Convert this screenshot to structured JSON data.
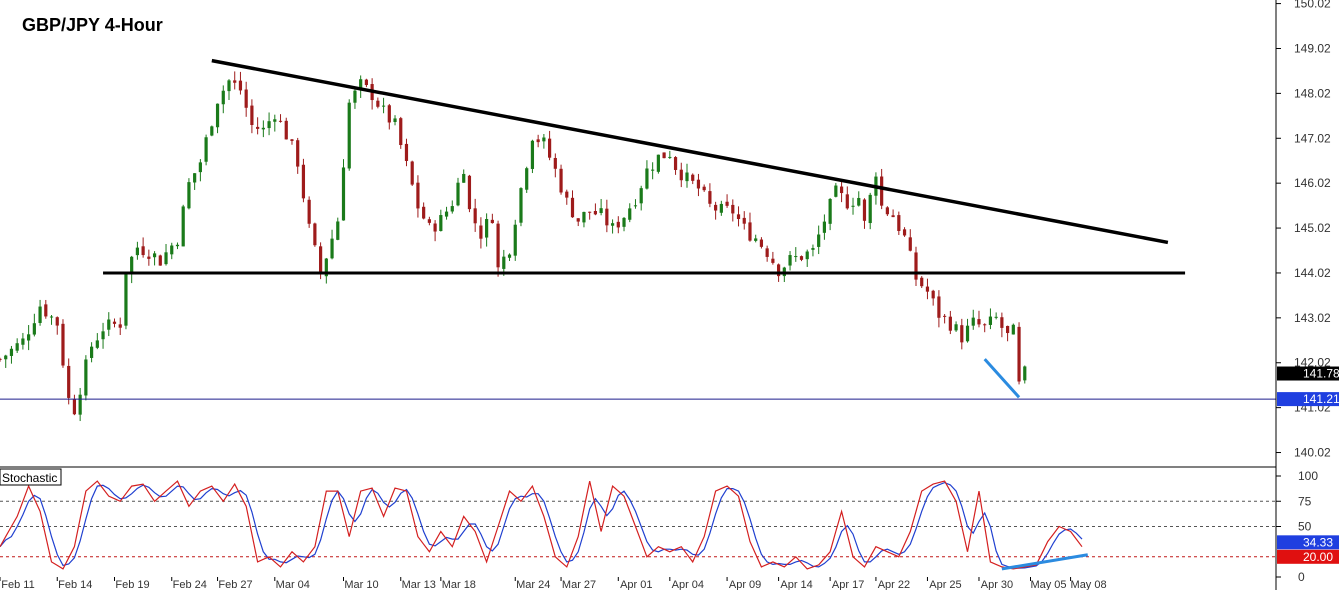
{
  "chart_data": [
    {
      "type": "candlestick",
      "title": "GBP/JPY 4-Hour",
      "ylim": [
        139.72,
        150.1
      ],
      "yticks": [
        "150.02",
        "149.02",
        "148.02",
        "147.02",
        "146.02",
        "145.02",
        "144.02",
        "143.02",
        "142.02",
        "141.02",
        "140.02"
      ],
      "ytick_values": [
        150.02,
        149.02,
        148.02,
        147.02,
        146.02,
        145.02,
        144.02,
        143.02,
        142.02,
        141.02,
        140.02
      ],
      "price_path": [
        [
          0,
          142.1
        ],
        [
          4,
          142.5
        ],
        [
          7,
          143.3
        ],
        [
          10,
          142.9
        ],
        [
          12,
          141.2
        ],
        [
          13,
          141.0
        ],
        [
          16,
          142.4
        ],
        [
          18,
          142.8
        ],
        [
          21,
          142.9
        ],
        [
          22,
          144.1
        ],
        [
          24,
          144.6
        ],
        [
          26,
          144.5
        ],
        [
          28,
          144.3
        ],
        [
          31,
          144.8
        ],
        [
          33,
          146.0
        ],
        [
          35,
          146.5
        ],
        [
          38,
          147.9
        ],
        [
          40,
          148.3
        ],
        [
          42,
          148.1
        ],
        [
          44,
          147.3
        ],
        [
          46,
          147.2
        ],
        [
          48,
          147.6
        ],
        [
          50,
          147.1
        ],
        [
          52,
          146.5
        ],
        [
          54,
          145.0
        ],
        [
          56,
          144.0
        ],
        [
          59,
          145.2
        ],
        [
          61,
          147.8
        ],
        [
          63,
          148.2
        ],
        [
          65,
          148.0
        ],
        [
          67,
          147.6
        ],
        [
          69,
          147.3
        ],
        [
          71,
          146.4
        ],
        [
          73,
          145.5
        ],
        [
          75,
          145.0
        ],
        [
          77,
          145.2
        ],
        [
          79,
          145.6
        ],
        [
          81,
          146.4
        ],
        [
          82,
          145.4
        ],
        [
          84,
          144.9
        ],
        [
          86,
          145.3
        ],
        [
          87,
          144.1
        ],
        [
          89,
          144.6
        ],
        [
          91,
          145.9
        ],
        [
          93,
          147.1
        ],
        [
          95,
          146.9
        ],
        [
          97,
          146.3
        ],
        [
          99,
          145.6
        ],
        [
          101,
          145.2
        ],
        [
          103,
          145.4
        ],
        [
          105,
          145.3
        ],
        [
          107,
          145.0
        ],
        [
          109,
          145.3
        ],
        [
          111,
          145.7
        ],
        [
          113,
          146.3
        ],
        [
          115,
          146.6
        ],
        [
          117,
          146.7
        ],
        [
          118,
          146.4
        ],
        [
          120,
          146.1
        ],
        [
          122,
          145.9
        ],
        [
          124,
          145.5
        ],
        [
          126,
          145.4
        ],
        [
          128,
          145.4
        ],
        [
          130,
          145.0
        ],
        [
          132,
          144.8
        ],
        [
          134,
          144.5
        ],
        [
          136,
          144.1
        ],
        [
          138,
          144.3
        ],
        [
          140,
          144.4
        ],
        [
          142,
          144.5
        ],
        [
          144,
          145.2
        ],
        [
          146,
          145.8
        ],
        [
          148,
          145.6
        ],
        [
          150,
          145.7
        ],
        [
          151,
          145.1
        ],
        [
          153,
          146.3
        ],
        [
          154,
          145.5
        ],
        [
          156,
          145.3
        ],
        [
          158,
          144.8
        ],
        [
          160,
          143.9
        ],
        [
          162,
          143.6
        ],
        [
          164,
          143.1
        ],
        [
          166,
          142.9
        ],
        [
          168,
          142.6
        ],
        [
          170,
          142.9
        ],
        [
          172,
          142.8
        ],
        [
          174,
          143.0
        ],
        [
          176,
          142.6
        ],
        [
          177,
          142.7
        ],
        [
          178,
          141.5
        ],
        [
          179,
          141.78
        ]
      ],
      "horizontal_line": {
        "price": 144.02
      },
      "trendline": {
        "from": [
          37,
          148.75
        ],
        "to": [
          204,
          144.7
        ]
      },
      "price_line": {
        "value": 141.21,
        "label": "141.21"
      },
      "last_price": {
        "value": 141.78,
        "label": "141.78"
      },
      "divergence_line_price": {
        "from": [
          172,
          142.1
        ],
        "to": [
          178,
          141.25
        ]
      },
      "x_tick_labels": [
        "Feb 11",
        "Feb 14",
        "Feb 19",
        "Feb 24",
        "Feb 27",
        "Mar 04",
        "Mar 10",
        "Mar 13",
        "Mar 18",
        "Mar 24",
        "Mar 27",
        "Apr 01",
        "Apr 04",
        "Apr 09",
        "Apr 14",
        "Apr 17",
        "Apr 22",
        "Apr 25",
        "Apr 30",
        "May 05",
        "May 08"
      ],
      "x_tick_positions": [
        0,
        10,
        20,
        30,
        38,
        48,
        60,
        70,
        77,
        90,
        98,
        108,
        117,
        127,
        136,
        145,
        153,
        162,
        171,
        180,
        187
      ]
    },
    {
      "type": "line",
      "title": "Stochastic",
      "ylim": [
        0,
        100
      ],
      "yticks": [
        "100",
        "75",
        "50",
        "0"
      ],
      "ytick_values": [
        100,
        75,
        50,
        0
      ],
      "levels": [
        75,
        50,
        20
      ],
      "k_path": [
        [
          0,
          30
        ],
        [
          3,
          60
        ],
        [
          5,
          90
        ],
        [
          7,
          65
        ],
        [
          9,
          15
        ],
        [
          11,
          8
        ],
        [
          13,
          30
        ],
        [
          15,
          85
        ],
        [
          17,
          95
        ],
        [
          19,
          80
        ],
        [
          21,
          75
        ],
        [
          23,
          90
        ],
        [
          25,
          92
        ],
        [
          27,
          75
        ],
        [
          29,
          85
        ],
        [
          31,
          95
        ],
        [
          33,
          70
        ],
        [
          35,
          85
        ],
        [
          37,
          90
        ],
        [
          39,
          75
        ],
        [
          41,
          92
        ],
        [
          43,
          70
        ],
        [
          45,
          15
        ],
        [
          47,
          20
        ],
        [
          49,
          10
        ],
        [
          51,
          25
        ],
        [
          53,
          15
        ],
        [
          55,
          30
        ],
        [
          57,
          85
        ],
        [
          59,
          85
        ],
        [
          61,
          40
        ],
        [
          63,
          85
        ],
        [
          65,
          88
        ],
        [
          67,
          60
        ],
        [
          69,
          88
        ],
        [
          71,
          85
        ],
        [
          73,
          40
        ],
        [
          75,
          25
        ],
        [
          77,
          45
        ],
        [
          79,
          30
        ],
        [
          81,
          60
        ],
        [
          83,
          45
        ],
        [
          85,
          15
        ],
        [
          87,
          50
        ],
        [
          89,
          85
        ],
        [
          91,
          75
        ],
        [
          93,
          90
        ],
        [
          95,
          60
        ],
        [
          97,
          20
        ],
        [
          99,
          10
        ],
        [
          101,
          40
        ],
        [
          103,
          95
        ],
        [
          105,
          45
        ],
        [
          107,
          90
        ],
        [
          109,
          80
        ],
        [
          111,
          50
        ],
        [
          113,
          20
        ],
        [
          115,
          30
        ],
        [
          117,
          25
        ],
        [
          119,
          30
        ],
        [
          121,
          15
        ],
        [
          123,
          40
        ],
        [
          125,
          85
        ],
        [
          127,
          90
        ],
        [
          129,
          80
        ],
        [
          131,
          35
        ],
        [
          133,
          10
        ],
        [
          135,
          15
        ],
        [
          137,
          10
        ],
        [
          139,
          20
        ],
        [
          141,
          8
        ],
        [
          143,
          12
        ],
        [
          145,
          25
        ],
        [
          147,
          65
        ],
        [
          149,
          20
        ],
        [
          151,
          10
        ],
        [
          153,
          30
        ],
        [
          155,
          25
        ],
        [
          157,
          20
        ],
        [
          159,
          45
        ],
        [
          161,
          85
        ],
        [
          163,
          92
        ],
        [
          165,
          95
        ],
        [
          167,
          75
        ],
        [
          169,
          25
        ],
        [
          171,
          85
        ],
        [
          173,
          15
        ],
        [
          175,
          10
        ],
        [
          177,
          8
        ],
        [
          179,
          10
        ],
        [
          181,
          12
        ],
        [
          183,
          35
        ],
        [
          185,
          50
        ],
        [
          187,
          45
        ],
        [
          189,
          30
        ]
      ],
      "k_value": {
        "value": 34.33,
        "label": "34.33"
      },
      "d_value": {
        "value": 20.0,
        "label": "20.00"
      },
      "divergence_line_stoch": {
        "from": [
          175,
          8
        ],
        "to": [
          190,
          22
        ]
      }
    }
  ],
  "colors": {
    "bull": "#1a7a1a",
    "bear": "#9e1b1b",
    "stoch_k": "#d42020",
    "stoch_d": "#2040d0",
    "trend": "#000000",
    "divergence": "#2b8be0",
    "price_badge": "#1f3fe0",
    "last_badge": "#000000",
    "k_badge": "#1f3fe0",
    "d_badge": "#e01010"
  }
}
